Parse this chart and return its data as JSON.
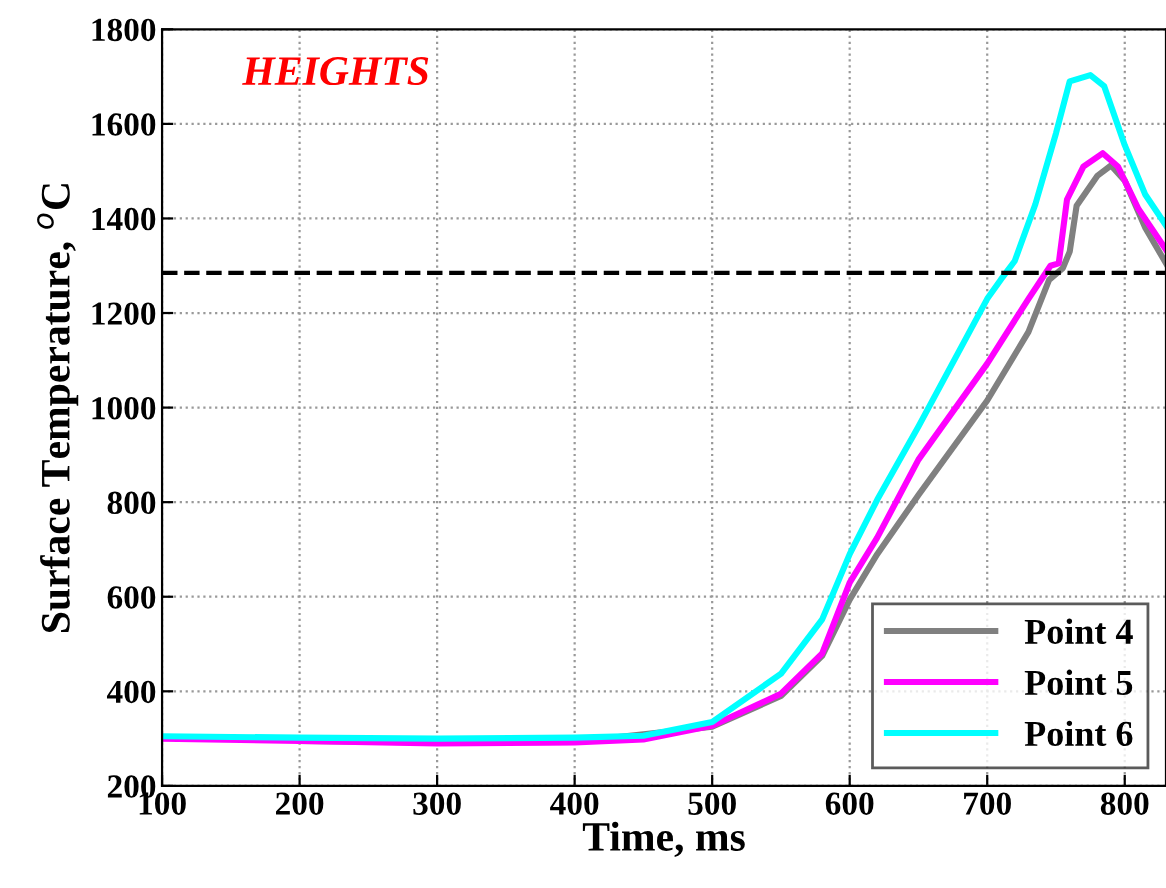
{
  "chart_data": {
    "type": "line",
    "xlabel": "Time, ms",
    "ylabel": "Surface Temperature, $^{o}$C",
    "annotations": [
      "HEIGHTS"
    ],
    "xlim": [
      100,
      830
    ],
    "xticks": [
      100,
      200,
      300,
      400,
      500,
      600,
      700,
      800
    ],
    "ylim": [
      200,
      1800
    ],
    "yticks": [
      200,
      400,
      600,
      800,
      1000,
      1200,
      1400,
      1600,
      1800
    ],
    "grid": true,
    "legend": "bottom right",
    "marker": "none",
    "line_style": "solid",
    "ref_lines": [
      {
        "axis": "y",
        "value": 1285,
        "color": "#000000",
        "line_style": "dashed"
      }
    ],
    "series": [
      {
        "name": "Point 4",
        "color": "#808080",
        "x": [
          200,
          300,
          400,
          500,
          550,
          580,
          600,
          620,
          650,
          700,
          730,
          745,
          755,
          760,
          765,
          780,
          790,
          800,
          815,
          830
        ],
        "values": [
          295,
          292,
          293,
          325,
          390,
          475,
          594,
          690,
          815,
          1015,
          1160,
          1270,
          1295,
          1330,
          1427,
          1490,
          1512,
          1480,
          1380,
          1305
        ]
      },
      {
        "name": "Point 5",
        "color": "#ff00ff",
        "x": [
          100,
          200,
          300,
          400,
          450,
          500,
          550,
          580,
          600,
          620,
          650,
          700,
          730,
          746,
          752,
          758,
          770,
          784,
          795,
          810,
          830
        ],
        "values": [
          300,
          295,
          290,
          292,
          298,
          327,
          395,
          480,
          630,
          725,
          890,
          1093,
          1230,
          1300,
          1305,
          1440,
          1510,
          1538,
          1510,
          1420,
          1334
        ]
      },
      {
        "name": "Point 6",
        "color": "#00ffff",
        "x": [
          100,
          200,
          300,
          400,
          450,
          500,
          550,
          580,
          600,
          620,
          650,
          700,
          710,
          720,
          735,
          750,
          760,
          775,
          785,
          800,
          815,
          830
        ],
        "values": [
          305,
          302,
          300,
          302,
          306,
          335,
          437,
          552,
          690,
          805,
          960,
          1230,
          1271,
          1310,
          1430,
          1580,
          1690,
          1703,
          1680,
          1555,
          1450,
          1385
        ]
      }
    ]
  }
}
